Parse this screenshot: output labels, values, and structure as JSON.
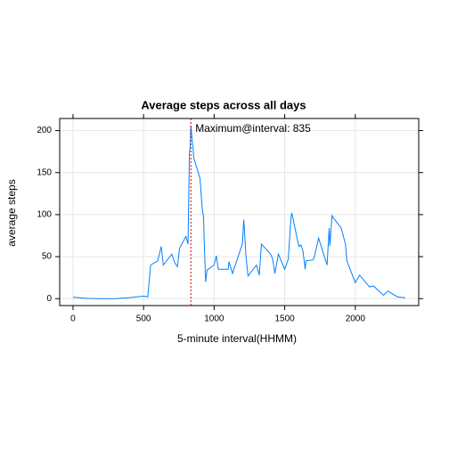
{
  "chart_data": {
    "type": "line",
    "title": "Average steps across all days",
    "x_label": "5-minute interval(HHMM)",
    "y_label": "average steps",
    "annotation": "Maximum@interval: 835",
    "vline": 835,
    "vline_color": "#cc0000",
    "color": "#0080ff",
    "grid": true,
    "xlim": [
      -94.2,
      2449.2
    ],
    "ylim": [
      -8.24,
      214.4
    ],
    "xticks": [
      0,
      500,
      1000,
      1500,
      2000
    ],
    "yticks": [
      0,
      50,
      100,
      150,
      200
    ],
    "x": [
      0,
      100,
      200,
      300,
      400,
      500,
      530,
      550,
      600,
      625,
      640,
      700,
      720,
      740,
      755,
      800,
      815,
      825,
      830,
      835,
      840,
      850,
      855,
      900,
      915,
      925,
      930,
      940,
      950,
      1000,
      1015,
      1030,
      1100,
      1105,
      1130,
      1200,
      1210,
      1225,
      1240,
      1300,
      1320,
      1335,
      1400,
      1415,
      1430,
      1455,
      1500,
      1525,
      1545,
      1550,
      1600,
      1615,
      1630,
      1645,
      1650,
      1700,
      1710,
      1740,
      1800,
      1815,
      1820,
      1835,
      1845,
      1900,
      1930,
      1940,
      2000,
      2030,
      2100,
      2130,
      2200,
      2230,
      2300,
      2355
    ],
    "values": [
      1.7,
      0.4,
      0,
      0,
      1.2,
      3,
      2.1,
      40,
      45,
      62,
      40,
      53,
      43,
      38,
      60,
      74,
      65,
      175,
      178,
      206,
      196,
      180,
      168,
      143,
      108,
      97,
      66,
      20,
      34,
      40,
      51,
      35,
      35,
      44,
      30,
      65,
      94,
      52,
      27,
      40,
      28,
      65,
      53,
      47,
      30,
      53,
      35,
      47,
      98,
      102,
      62,
      64,
      56,
      35,
      45,
      46,
      50,
      72,
      40,
      84,
      63,
      99,
      96,
      84,
      65,
      45,
      19,
      28,
      14,
      15,
      4,
      9,
      2,
      1
    ]
  }
}
